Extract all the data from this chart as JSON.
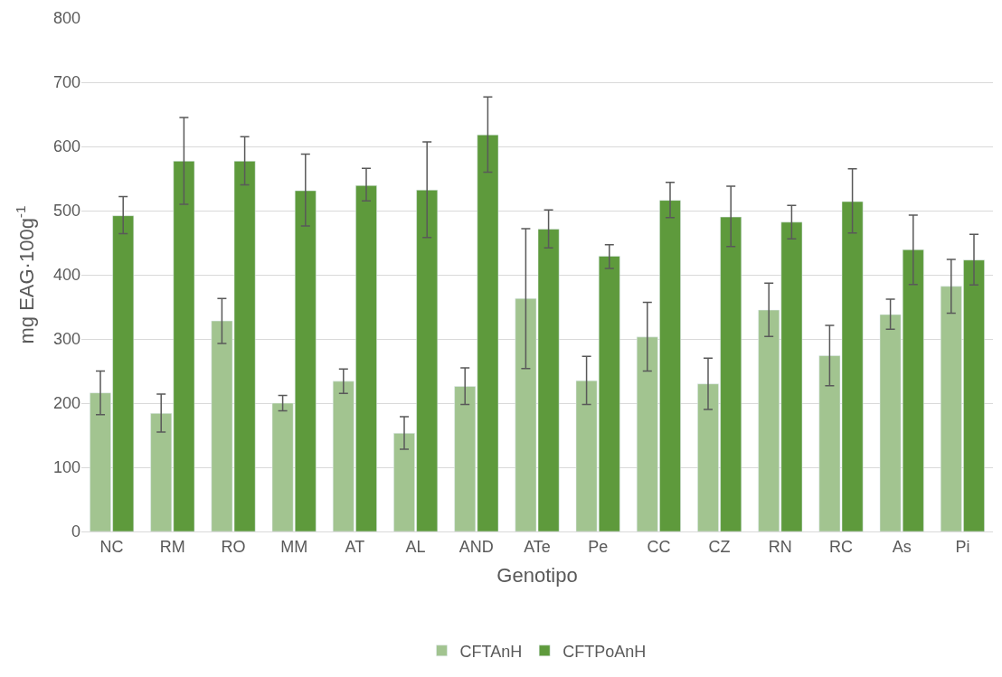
{
  "chart_data": {
    "type": "bar",
    "xlabel": "Genotipo",
    "ylabel": "mg EAG·100g$^{-1}$",
    "categories": [
      "NC",
      "RM",
      "RO",
      "MM",
      "AT",
      "AL",
      "AND",
      "ATe",
      "Pe",
      "CC",
      "CZ",
      "RN",
      "RC",
      "As",
      "Pi"
    ],
    "series": [
      {
        "name": "CFTAnH",
        "color": "#a2c490",
        "values": [
          216,
          184,
          328,
          200,
          234,
          153,
          226,
          363,
          235,
          303,
          230,
          345,
          274,
          338,
          382
        ],
        "errors": [
          [
            182,
            250
          ],
          [
            155,
            214
          ],
          [
            293,
            363
          ],
          [
            188,
            212
          ],
          [
            215,
            253
          ],
          [
            128,
            179
          ],
          [
            198,
            255
          ],
          [
            254,
            472
          ],
          [
            198,
            273
          ],
          [
            250,
            357
          ],
          [
            190,
            270
          ],
          [
            304,
            387
          ],
          [
            227,
            321
          ],
          [
            315,
            362
          ],
          [
            340,
            424
          ]
        ]
      },
      {
        "name": "CFTPoAnH",
        "color": "#5e9a3c",
        "values": [
          492,
          577,
          577,
          531,
          539,
          532,
          618,
          471,
          429,
          516,
          490,
          482,
          514,
          439,
          423
        ],
        "errors": [
          [
            464,
            522
          ],
          [
            510,
            645
          ],
          [
            540,
            615
          ],
          [
            476,
            588
          ],
          [
            515,
            566
          ],
          [
            458,
            607
          ],
          [
            560,
            677
          ],
          [
            442,
            501
          ],
          [
            410,
            447
          ],
          [
            489,
            544
          ],
          [
            444,
            538
          ],
          [
            456,
            508
          ],
          [
            465,
            565
          ],
          [
            385,
            493
          ],
          [
            384,
            463
          ]
        ]
      }
    ],
    "ylim": [
      0,
      800
    ],
    "yticks": [
      0,
      100,
      200,
      300,
      400,
      500,
      600,
      700,
      800
    ],
    "grid": "y",
    "legend": "bottom"
  }
}
